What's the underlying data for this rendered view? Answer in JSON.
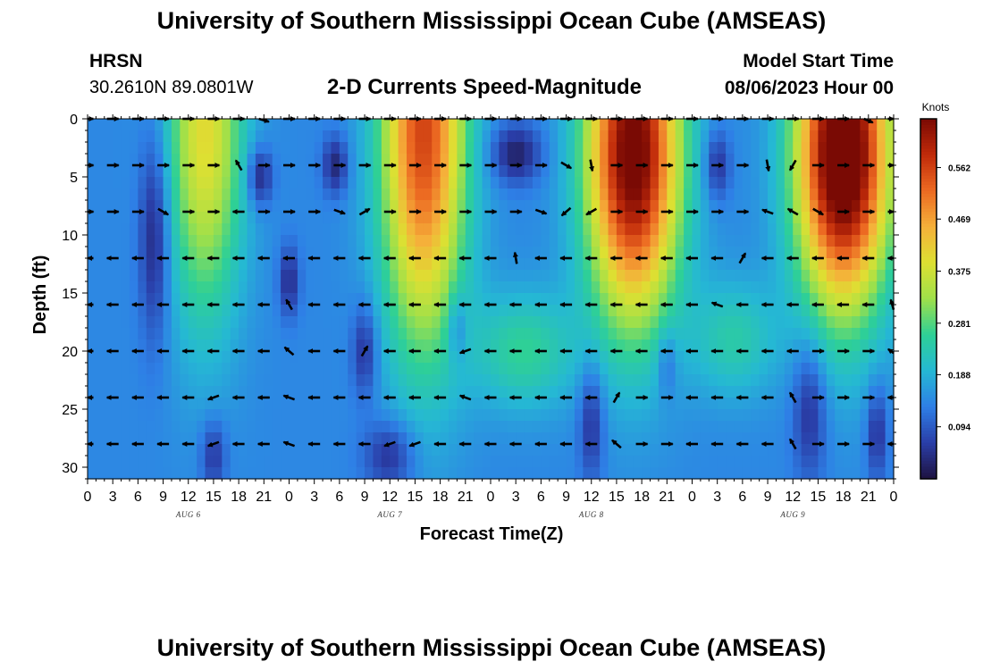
{
  "header": {
    "title": "University of Southern Mississippi Ocean Cube (AMSEAS)",
    "station": "HRSN",
    "coords": "30.2610N  89.0801W",
    "plot_title": "2-D Currents Speed-Magnitude",
    "model_start_label": "Model Start Time",
    "model_start_value": "08/06/2023 Hour 00"
  },
  "footer": {
    "title": "University of Southern Mississippi Ocean Cube (AMSEAS)"
  },
  "chart_data": {
    "type": "heatmap",
    "title": "2-D Currents Speed-Magnitude",
    "xlabel": "Forecast Time(Z)",
    "ylabel": "Depth (ft)",
    "x_hours_range": [
      0,
      96
    ],
    "x_tick_step_hours": 3,
    "x_tick_labels": [
      "0",
      "3",
      "6",
      "9",
      "12",
      "15",
      "18",
      "21",
      "0",
      "3",
      "6",
      "9",
      "12",
      "15",
      "18",
      "21",
      "0",
      "3",
      "6",
      "9",
      "12",
      "15",
      "18",
      "21",
      "0",
      "3",
      "6",
      "9",
      "12",
      "15",
      "18",
      "21",
      "0"
    ],
    "date_labels": [
      {
        "text": "AUG 6",
        "hour": 12
      },
      {
        "text": "AUG 7",
        "hour": 36
      },
      {
        "text": "AUG 8",
        "hour": 60
      },
      {
        "text": "AUG 9",
        "hour": 84
      }
    ],
    "y_range_ft": [
      0,
      31
    ],
    "y_ticks": [
      0,
      5,
      10,
      15,
      20,
      25,
      30
    ],
    "colorbar": {
      "unit": "Knots",
      "min": 0.0,
      "max": 0.65,
      "tick_values": [
        0.562,
        0.469,
        0.375,
        0.281,
        0.188,
        0.094
      ],
      "tick_labels": [
        "0.562",
        "0.469",
        "0.375",
        "0.281",
        "0.188",
        "0.094"
      ],
      "colors": [
        "#1e1240",
        "#2a3ea8",
        "#2e7fe6",
        "#25b8d4",
        "#2ed096",
        "#9fe04a",
        "#dde032",
        "#f5b03a",
        "#ec6a22",
        "#c02a0a",
        "#7a0a04"
      ]
    },
    "speed_model": {
      "base": 0.14,
      "features": [
        {
          "hour": 14,
          "depth": 1,
          "sh": 4.5,
          "sd": 16,
          "amp": 0.26
        },
        {
          "hour": 40,
          "depth": 1,
          "sh": 5,
          "sd": 18,
          "amp": 0.42
        },
        {
          "hour": 65,
          "depth": 3,
          "sh": 5.5,
          "sd": 14,
          "amp": 0.54
        },
        {
          "hour": 90,
          "depth": 3,
          "sh": 5.5,
          "sd": 13,
          "amp": 0.6
        },
        {
          "hour": 52,
          "depth": 20,
          "sh": 6,
          "sd": 5,
          "amp": 0.12
        },
        {
          "hour": 77,
          "depth": 19,
          "sh": 5,
          "sd": 5,
          "amp": 0.1
        },
        {
          "hour": 8,
          "depth": 10,
          "sh": 1.8,
          "sd": 9,
          "amp": -0.12
        },
        {
          "hour": 20.5,
          "depth": 5,
          "sh": 1.5,
          "sd": 2.5,
          "amp": -0.12
        },
        {
          "hour": 29.5,
          "depth": 4,
          "sh": 1.5,
          "sd": 2.5,
          "amp": -0.11
        },
        {
          "hour": 24,
          "depth": 14,
          "sh": 1.2,
          "sd": 3,
          "amp": -0.1
        },
        {
          "hour": 33,
          "depth": 20,
          "sh": 1.5,
          "sd": 4,
          "amp": -0.1
        },
        {
          "hour": 44,
          "depth": 18,
          "sh": 1.2,
          "sd": 3,
          "amp": -0.08
        },
        {
          "hour": 51,
          "depth": 3,
          "sh": 3,
          "sd": 2.5,
          "amp": -0.12
        },
        {
          "hour": 60,
          "depth": 26,
          "sh": 1.5,
          "sd": 5,
          "amp": -0.1
        },
        {
          "hour": 36,
          "depth": 29,
          "sh": 3,
          "sd": 3,
          "amp": -0.1
        },
        {
          "hour": 15,
          "depth": 29,
          "sh": 1.5,
          "sd": 3,
          "amp": -0.09
        },
        {
          "hour": 75,
          "depth": 4,
          "sh": 1.5,
          "sd": 3,
          "amp": -0.1
        },
        {
          "hour": 86,
          "depth": 25,
          "sh": 2,
          "sd": 6,
          "amp": -0.1
        },
        {
          "hour": 94,
          "depth": 27,
          "sh": 1.2,
          "sd": 4,
          "amp": -0.1
        },
        {
          "hour": 69,
          "depth": 21,
          "sh": 1.2,
          "sd": 3,
          "amp": -0.07
        }
      ]
    },
    "arrow_depths_ft": [
      0,
      4,
      8,
      12,
      16,
      20,
      24,
      28
    ],
    "arrow_step_hours": 3,
    "arrow_directions_deg": [
      [
        0,
        0,
        0,
        0,
        0,
        0,
        0,
        -30,
        0,
        0,
        0,
        0,
        0,
        0,
        0,
        0,
        0,
        0,
        0,
        0,
        0,
        0,
        0,
        0,
        0,
        0,
        0,
        0,
        0,
        0,
        0,
        -40,
        0
      ],
      [
        0,
        0,
        0,
        0,
        0,
        0,
        120,
        0,
        0,
        0,
        0,
        0,
        0,
        0,
        0,
        0,
        0,
        0,
        0,
        -30,
        -80,
        0,
        0,
        0,
        0,
        0,
        0,
        -80,
        -120,
        0,
        0,
        0,
        0
      ],
      [
        0,
        0,
        0,
        -30,
        0,
        0,
        180,
        0,
        0,
        0,
        -20,
        30,
        0,
        0,
        0,
        0,
        0,
        0,
        -20,
        -140,
        -150,
        0,
        0,
        0,
        0,
        0,
        0,
        160,
        150,
        -30,
        0,
        0,
        0
      ],
      [
        180,
        180,
        180,
        180,
        180,
        180,
        180,
        180,
        180,
        180,
        180,
        180,
        180,
        180,
        180,
        180,
        180,
        100,
        180,
        180,
        180,
        180,
        180,
        180,
        180,
        180,
        60,
        180,
        180,
        180,
        180,
        180,
        180
      ],
      [
        180,
        180,
        180,
        180,
        180,
        180,
        180,
        180,
        120,
        180,
        180,
        180,
        180,
        180,
        180,
        180,
        180,
        180,
        180,
        180,
        180,
        180,
        180,
        180,
        180,
        160,
        180,
        180,
        180,
        180,
        180,
        180,
        120
      ],
      [
        180,
        180,
        180,
        180,
        180,
        180,
        180,
        180,
        140,
        180,
        180,
        60,
        180,
        180,
        180,
        200,
        180,
        180,
        180,
        180,
        180,
        180,
        180,
        180,
        180,
        180,
        180,
        180,
        180,
        0,
        0,
        0,
        160
      ],
      [
        180,
        180,
        180,
        180,
        180,
        200,
        180,
        180,
        160,
        180,
        180,
        180,
        180,
        180,
        180,
        160,
        180,
        180,
        180,
        180,
        180,
        60,
        0,
        0,
        180,
        180,
        180,
        180,
        120,
        0,
        0,
        0,
        180
      ],
      [
        180,
        180,
        180,
        180,
        180,
        200,
        180,
        180,
        160,
        180,
        180,
        180,
        200,
        200,
        180,
        180,
        180,
        180,
        180,
        180,
        180,
        140,
        0,
        0,
        180,
        180,
        180,
        180,
        120,
        0,
        0,
        0,
        180
      ]
    ]
  }
}
